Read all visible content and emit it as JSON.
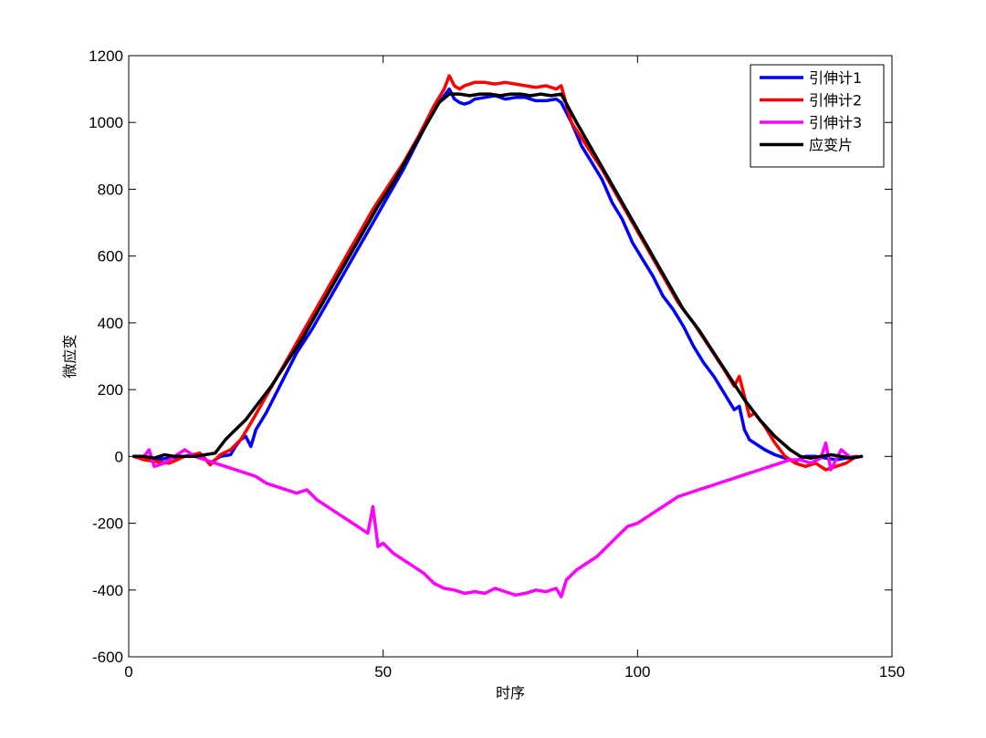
{
  "chart_data": {
    "type": "line",
    "title": "",
    "xlabel": "时序",
    "ylabel": "微应变",
    "xlim": [
      0,
      150
    ],
    "ylim": [
      -600,
      1200
    ],
    "xticks": [
      0,
      50,
      100,
      150
    ],
    "yticks": [
      -600,
      -400,
      -200,
      0,
      200,
      400,
      600,
      800,
      1000,
      1200
    ],
    "grid": false,
    "legend_position": "top-right",
    "series": [
      {
        "name": "引伸计1",
        "color": "#0000ff",
        "x": [
          1,
          3,
          5,
          8,
          11,
          14,
          16,
          18,
          20,
          21,
          22,
          23,
          24,
          25,
          27,
          30,
          33,
          36,
          39,
          42,
          45,
          48,
          51,
          54,
          57,
          59,
          61,
          62,
          63,
          64,
          65,
          66,
          67,
          68,
          70,
          72,
          74,
          76,
          78,
          80,
          82,
          84,
          85,
          87,
          89,
          91,
          93,
          95,
          97,
          99,
          101,
          103,
          105,
          107,
          109,
          111,
          113,
          115,
          117,
          119,
          120,
          121,
          122,
          123,
          125,
          127,
          129,
          131,
          133,
          135,
          137,
          139,
          141,
          143
        ],
        "values": [
          0,
          -8,
          -10,
          -5,
          0,
          5,
          -20,
          0,
          5,
          30,
          50,
          60,
          30,
          80,
          130,
          220,
          310,
          380,
          460,
          540,
          620,
          700,
          780,
          860,
          950,
          1010,
          1060,
          1080,
          1100,
          1070,
          1060,
          1055,
          1060,
          1070,
          1075,
          1080,
          1070,
          1075,
          1075,
          1065,
          1065,
          1070,
          1060,
          1000,
          930,
          880,
          830,
          760,
          710,
          640,
          590,
          540,
          480,
          440,
          390,
          330,
          280,
          240,
          190,
          140,
          150,
          80,
          50,
          40,
          20,
          5,
          -5,
          -15,
          0,
          0,
          -5,
          -10,
          -5,
          0
        ]
      },
      {
        "name": "引伸计2",
        "color": "#ff0000",
        "x": [
          1,
          3,
          5,
          8,
          11,
          14,
          16,
          18,
          20,
          22,
          24,
          27,
          30,
          33,
          36,
          39,
          42,
          45,
          48,
          51,
          54,
          57,
          60,
          62,
          63,
          64,
          65,
          66,
          68,
          70,
          72,
          74,
          76,
          78,
          80,
          82,
          84,
          85,
          87,
          90,
          93,
          96,
          99,
          102,
          105,
          108,
          111,
          114,
          117,
          119,
          120,
          121,
          122,
          123,
          125,
          127,
          129,
          131,
          133,
          135,
          137,
          139,
          141,
          143
        ],
        "values": [
          0,
          -10,
          -15,
          -20,
          0,
          10,
          -25,
          5,
          20,
          50,
          100,
          180,
          260,
          340,
          420,
          500,
          580,
          660,
          740,
          810,
          880,
          960,
          1050,
          1100,
          1140,
          1110,
          1100,
          1110,
          1120,
          1120,
          1115,
          1120,
          1115,
          1110,
          1105,
          1110,
          1100,
          1110,
          1000,
          930,
          860,
          780,
          700,
          620,
          540,
          460,
          400,
          330,
          260,
          210,
          240,
          180,
          120,
          130,
          90,
          40,
          0,
          -20,
          -30,
          -20,
          -40,
          -30,
          -20,
          0
        ]
      },
      {
        "name": "引伸计3",
        "color": "#ff00ff",
        "x": [
          1,
          3,
          4,
          5,
          7,
          9,
          11,
          13,
          15,
          17,
          19,
          21,
          23,
          25,
          27,
          29,
          31,
          33,
          35,
          37,
          39,
          41,
          43,
          45,
          47,
          48,
          49,
          50,
          52,
          54,
          56,
          58,
          60,
          62,
          64,
          66,
          68,
          70,
          72,
          74,
          76,
          78,
          80,
          82,
          84,
          85,
          86,
          88,
          90,
          92,
          94,
          96,
          98,
          100,
          102,
          104,
          106,
          108,
          110,
          112,
          114,
          116,
          118,
          120,
          122,
          124,
          126,
          128,
          130,
          132,
          134,
          136,
          137,
          138,
          140,
          142,
          144
        ],
        "values": [
          0,
          0,
          20,
          -30,
          -20,
          0,
          20,
          0,
          -10,
          -20,
          -30,
          -40,
          -50,
          -60,
          -80,
          -90,
          -100,
          -110,
          -100,
          -130,
          -150,
          -170,
          -190,
          -210,
          -230,
          -150,
          -270,
          -260,
          -290,
          -310,
          -330,
          -350,
          -380,
          -395,
          -400,
          -410,
          -405,
          -410,
          -395,
          -405,
          -415,
          -410,
          -400,
          -405,
          -395,
          -420,
          -370,
          -340,
          -320,
          -300,
          -270,
          -240,
          -210,
          -200,
          -180,
          -160,
          -140,
          -120,
          -110,
          -100,
          -90,
          -80,
          -70,
          -60,
          -50,
          -40,
          -30,
          -20,
          -10,
          -10,
          -20,
          -5,
          40,
          -40,
          20,
          -5,
          0
        ]
      },
      {
        "name": "应变片",
        "color": "#000000",
        "x": [
          1,
          3,
          5,
          7,
          9,
          11,
          13,
          15,
          17,
          19,
          21,
          23,
          25,
          28,
          31,
          34,
          37,
          40,
          43,
          46,
          49,
          52,
          55,
          58,
          61,
          63,
          65,
          67,
          69,
          71,
          73,
          75,
          77,
          79,
          81,
          83,
          85,
          88,
          91,
          94,
          97,
          100,
          103,
          106,
          109,
          112,
          115,
          118,
          121,
          124,
          127,
          130,
          132,
          134,
          136,
          138,
          140,
          142,
          144
        ],
        "values": [
          0,
          0,
          -5,
          5,
          0,
          0,
          0,
          5,
          10,
          50,
          80,
          110,
          150,
          210,
          280,
          350,
          430,
          510,
          590,
          670,
          750,
          820,
          900,
          980,
          1060,
          1085,
          1085,
          1080,
          1085,
          1085,
          1080,
          1085,
          1085,
          1080,
          1085,
          1080,
          1085,
          1000,
          920,
          840,
          760,
          680,
          600,
          520,
          440,
          380,
          310,
          240,
          170,
          110,
          60,
          20,
          0,
          -5,
          0,
          5,
          0,
          -5,
          0
        ]
      }
    ]
  }
}
